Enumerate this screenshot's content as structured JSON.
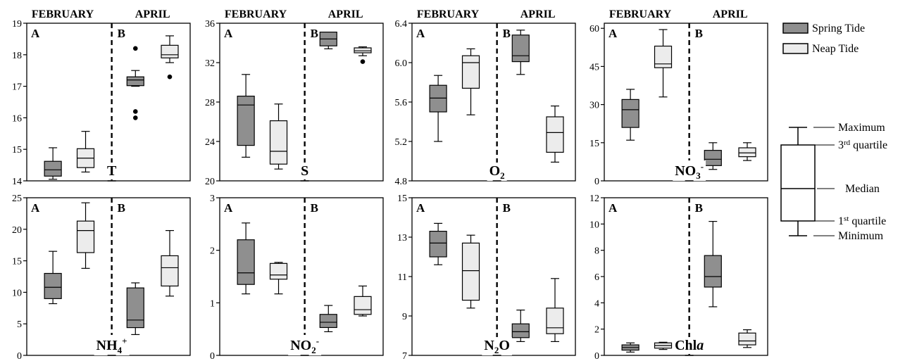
{
  "seasons": {
    "left": "FEBRUARY",
    "right": "APRIL"
  },
  "panel_letters": {
    "left": "A",
    "right": "B"
  },
  "colors": {
    "spring": "#8f8f8f",
    "neap": "#ececec",
    "stroke": "#000000"
  },
  "legend": {
    "spring": "Spring Tide",
    "neap": "Neap Tide",
    "maximum": "Maximum",
    "q3_prefix": "3",
    "q3_sup": "rd",
    "q3_suffix": " quartile",
    "median": "Median",
    "q1_prefix": "1",
    "q1_sup": "st",
    "q1_suffix": " quartile",
    "minimum": "Minimum"
  },
  "chart_data": [
    {
      "type": "box",
      "var_label": {
        "base": "T",
        "sub": "",
        "sup": ""
      },
      "ylim": [
        14,
        19
      ],
      "yticks": [
        "14",
        "15",
        "16",
        "17",
        "18",
        "19"
      ],
      "series": [
        {
          "name": "Spring Tide",
          "season": "FEBRUARY",
          "min": 14.05,
          "q1": 14.15,
          "median": 14.35,
          "q3": 14.62,
          "max": 15.05,
          "outliers": []
        },
        {
          "name": "Neap Tide",
          "season": "FEBRUARY",
          "min": 14.28,
          "q1": 14.42,
          "median": 14.72,
          "q3": 15.02,
          "max": 15.57,
          "outliers": []
        },
        {
          "name": "Spring Tide",
          "season": "APRIL",
          "min": 17.0,
          "q1": 17.02,
          "median": 17.2,
          "q3": 17.3,
          "max": 17.5,
          "outliers": [
            18.2,
            16.2,
            16.0
          ]
        },
        {
          "name": "Neap Tide",
          "season": "APRIL",
          "min": 17.75,
          "q1": 17.9,
          "median": 18.0,
          "q3": 18.3,
          "max": 18.6,
          "outliers": [
            17.3
          ]
        }
      ]
    },
    {
      "type": "box",
      "var_label": {
        "base": "S",
        "sub": "",
        "sup": ""
      },
      "ylim": [
        20,
        36
      ],
      "yticks": [
        "20",
        "24",
        "28",
        "32",
        "36"
      ],
      "series": [
        {
          "name": "Spring Tide",
          "season": "FEBRUARY",
          "min": 22.4,
          "q1": 23.6,
          "median": 27.7,
          "q3": 28.6,
          "max": 30.8,
          "outliers": []
        },
        {
          "name": "Neap Tide",
          "season": "FEBRUARY",
          "min": 21.2,
          "q1": 21.7,
          "median": 23.0,
          "q3": 26.1,
          "max": 27.8,
          "outliers": []
        },
        {
          "name": "Spring Tide",
          "season": "APRIL",
          "min": 33.4,
          "q1": 33.7,
          "median": 34.4,
          "q3": 35.1,
          "max": 35.1,
          "outliers": []
        },
        {
          "name": "Neap Tide",
          "season": "APRIL",
          "min": 32.7,
          "q1": 33.0,
          "median": 33.2,
          "q3": 33.5,
          "max": 33.6,
          "outliers": [
            32.1
          ]
        }
      ]
    },
    {
      "type": "box",
      "var_label": {
        "base": "O",
        "sub": "2",
        "sup": ""
      },
      "ylim": [
        4.8,
        6.4
      ],
      "yticks": [
        "4.8",
        "5.2",
        "5.6",
        "6.0",
        "6.4"
      ],
      "series": [
        {
          "name": "Spring Tide",
          "season": "FEBRUARY",
          "min": 5.2,
          "q1": 5.5,
          "median": 5.64,
          "q3": 5.77,
          "max": 5.87,
          "outliers": []
        },
        {
          "name": "Neap Tide",
          "season": "FEBRUARY",
          "min": 5.47,
          "q1": 5.74,
          "median": 6.0,
          "q3": 6.07,
          "max": 6.14,
          "outliers": []
        },
        {
          "name": "Spring Tide",
          "season": "APRIL",
          "min": 5.88,
          "q1": 6.01,
          "median": 6.07,
          "q3": 6.28,
          "max": 6.33,
          "outliers": []
        },
        {
          "name": "Neap Tide",
          "season": "APRIL",
          "min": 4.99,
          "q1": 5.09,
          "median": 5.29,
          "q3": 5.45,
          "max": 5.56,
          "outliers": []
        }
      ]
    },
    {
      "type": "box",
      "var_label": {
        "base": "NO",
        "sub": "3",
        "sup": "-"
      },
      "ylim": [
        0,
        62
      ],
      "yticks": [
        "0",
        "15",
        "30",
        "45",
        "60"
      ],
      "series": [
        {
          "name": "Spring Tide",
          "season": "FEBRUARY",
          "min": 16,
          "q1": 21,
          "median": 28,
          "q3": 32,
          "max": 36,
          "outliers": []
        },
        {
          "name": "Neap Tide",
          "season": "FEBRUARY",
          "min": 33,
          "q1": 44.5,
          "median": 46,
          "q3": 53,
          "max": 59.5,
          "outliers": []
        },
        {
          "name": "Spring Tide",
          "season": "APRIL",
          "min": 4.5,
          "q1": 6,
          "median": 8.5,
          "q3": 12,
          "max": 15,
          "outliers": []
        },
        {
          "name": "Neap Tide",
          "season": "APRIL",
          "min": 8,
          "q1": 9.5,
          "median": 11,
          "q3": 13,
          "max": 15,
          "outliers": []
        }
      ]
    },
    {
      "type": "box",
      "var_label": {
        "base": "NH",
        "sub": "4",
        "sup": "+"
      },
      "ylim": [
        0,
        25
      ],
      "yticks": [
        "0",
        "5",
        "10",
        "15",
        "20",
        "25"
      ],
      "series": [
        {
          "name": "Spring Tide",
          "season": "FEBRUARY",
          "min": 8.2,
          "q1": 9.0,
          "median": 10.8,
          "q3": 13.0,
          "max": 16.5,
          "outliers": []
        },
        {
          "name": "Neap Tide",
          "season": "FEBRUARY",
          "min": 13.8,
          "q1": 16.3,
          "median": 19.8,
          "q3": 21.3,
          "max": 24.2,
          "outliers": []
        },
        {
          "name": "Spring Tide",
          "season": "APRIL",
          "min": 3.3,
          "q1": 4.4,
          "median": 5.6,
          "q3": 10.7,
          "max": 11.5,
          "outliers": []
        },
        {
          "name": "Neap Tide",
          "season": "APRIL",
          "min": 9.4,
          "q1": 11.0,
          "median": 13.9,
          "q3": 15.8,
          "max": 19.8,
          "outliers": []
        }
      ]
    },
    {
      "type": "box",
      "var_label": {
        "base": "NO",
        "sub": "2",
        "sup": "-"
      },
      "ylim": [
        0,
        3
      ],
      "yticks": [
        "0",
        "1",
        "2",
        "3"
      ],
      "series": [
        {
          "name": "Spring Tide",
          "season": "FEBRUARY",
          "min": 1.17,
          "q1": 1.35,
          "median": 1.57,
          "q3": 2.2,
          "max": 2.52,
          "outliers": []
        },
        {
          "name": "Neap Tide",
          "season": "FEBRUARY",
          "min": 1.17,
          "q1": 1.45,
          "median": 1.53,
          "q3": 1.75,
          "max": 1.77,
          "outliers": []
        },
        {
          "name": "Spring Tide",
          "season": "APRIL",
          "min": 0.45,
          "q1": 0.53,
          "median": 0.63,
          "q3": 0.78,
          "max": 0.95,
          "outliers": []
        },
        {
          "name": "Neap Tide",
          "season": "APRIL",
          "min": 0.75,
          "q1": 0.78,
          "median": 0.87,
          "q3": 1.12,
          "max": 1.32,
          "outliers": []
        }
      ]
    },
    {
      "type": "box",
      "var_label": {
        "base": "N",
        "sub": "2",
        "sup": "",
        "suffix": "O"
      },
      "ylim": [
        7,
        15
      ],
      "yticks": [
        "7",
        "9",
        "11",
        "13",
        "15"
      ],
      "series": [
        {
          "name": "Spring Tide",
          "season": "FEBRUARY",
          "min": 11.6,
          "q1": 12.0,
          "median": 12.7,
          "q3": 13.3,
          "max": 13.7,
          "outliers": []
        },
        {
          "name": "Neap Tide",
          "season": "FEBRUARY",
          "min": 9.4,
          "q1": 9.8,
          "median": 11.3,
          "q3": 12.7,
          "max": 13.1,
          "outliers": []
        },
        {
          "name": "Spring Tide",
          "season": "APRIL",
          "min": 7.7,
          "q1": 7.9,
          "median": 8.2,
          "q3": 8.6,
          "max": 9.3,
          "outliers": []
        },
        {
          "name": "Neap Tide",
          "season": "APRIL",
          "min": 7.7,
          "q1": 8.1,
          "median": 8.4,
          "q3": 9.4,
          "max": 10.9,
          "outliers": []
        }
      ]
    },
    {
      "type": "box",
      "var_label": {
        "base": "Chl",
        "sub": "",
        "sup": "",
        "italic_suffix": "a"
      },
      "ylim": [
        0,
        12
      ],
      "yticks": [
        "0",
        "2",
        "4",
        "6",
        "8",
        "10",
        "12"
      ],
      "series": [
        {
          "name": "Spring Tide",
          "season": "FEBRUARY",
          "min": 0.25,
          "q1": 0.4,
          "median": 0.6,
          "q3": 0.8,
          "max": 0.95,
          "outliers": []
        },
        {
          "name": "Neap Tide",
          "season": "FEBRUARY",
          "min": 0.45,
          "q1": 0.55,
          "median": 0.75,
          "q3": 0.95,
          "max": 1.0,
          "outliers": []
        },
        {
          "name": "Spring Tide",
          "season": "APRIL",
          "min": 3.7,
          "q1": 5.2,
          "median": 6.0,
          "q3": 7.6,
          "max": 10.2,
          "outliers": []
        },
        {
          "name": "Neap Tide",
          "season": "APRIL",
          "min": 0.6,
          "q1": 0.8,
          "median": 1.1,
          "q3": 1.7,
          "max": 1.95,
          "outliers": []
        }
      ]
    }
  ]
}
